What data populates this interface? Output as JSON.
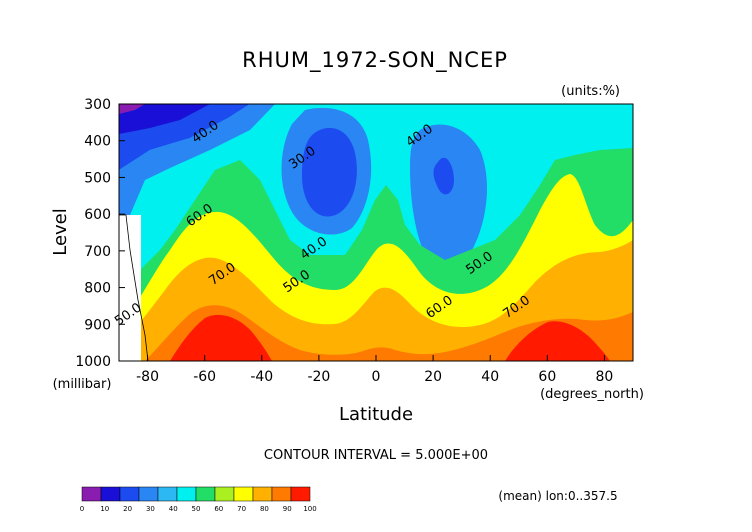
{
  "chart_data": {
    "type": "contour",
    "title": "RHUM_1972-SON_NCEP",
    "units": "(units:%)",
    "xlabel": "Latitude",
    "ylabel": "Level",
    "x_unit_label": "(degrees_north)",
    "y_unit_label": "(millibar)",
    "xlim": [
      -90,
      90
    ],
    "ylim": [
      1000,
      300
    ],
    "x_ticks": [
      -80,
      -60,
      -40,
      -20,
      0,
      20,
      40,
      60,
      80
    ],
    "y_ticks": [
      300,
      400,
      500,
      600,
      700,
      800,
      900,
      1000
    ],
    "contour_interval_text": "CONTOUR INTERVAL = 5.000E+00",
    "mean_note": "(mean) lon:0..357.5",
    "contour_labels": [
      {
        "text": "40.0",
        "lat": -59,
        "lev": 385
      },
      {
        "text": "30.0",
        "lat": -25,
        "lev": 455
      },
      {
        "text": "40.0",
        "lat": 16,
        "lev": 395
      },
      {
        "text": "60.0",
        "lat": -61,
        "lev": 612
      },
      {
        "text": "40.0",
        "lat": -21,
        "lev": 702
      },
      {
        "text": "50.0",
        "lat": 37,
        "lev": 742
      },
      {
        "text": "50.0",
        "lat": -27,
        "lev": 792
      },
      {
        "text": "70.0",
        "lat": -53,
        "lev": 772
      },
      {
        "text": "60.0",
        "lat": 23,
        "lev": 862
      },
      {
        "text": "70.0",
        "lat": 50,
        "lev": 862
      },
      {
        "text": "50.0",
        "lat": -86,
        "lev": 882
      }
    ],
    "colorbar": {
      "levels": [
        0,
        10,
        20,
        30,
        40,
        50,
        60,
        70,
        80,
        90,
        100
      ],
      "colors": [
        "#8b1cb0",
        "#1a0fd6",
        "#1c4cf0",
        "#2a86f2",
        "#2cb8f2",
        "#00f0f0",
        "#22dd66",
        "#aaf020",
        "#ffff00",
        "#ffb000",
        "#ff7a00",
        "#ff1a00"
      ]
    }
  }
}
